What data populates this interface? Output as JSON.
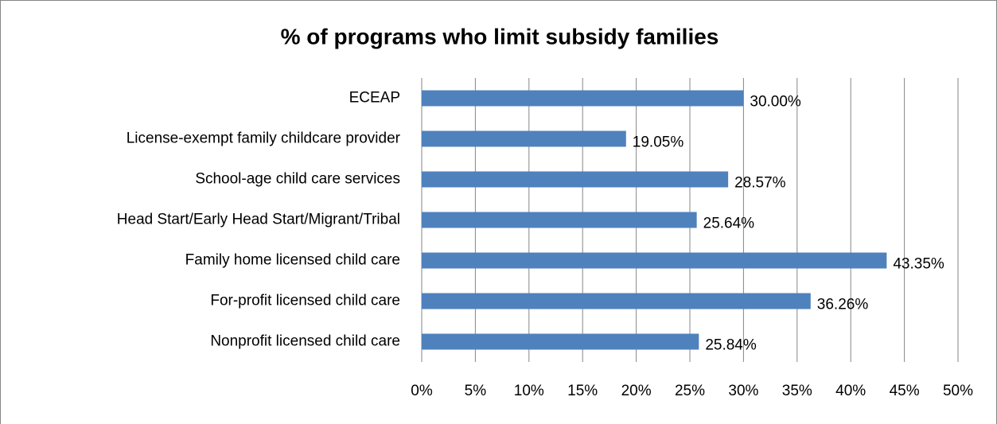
{
  "chart_data": {
    "type": "bar",
    "orientation": "horizontal",
    "title": "% of programs who limit subsidy families",
    "categories": [
      "ECEAP",
      "License-exempt family childcare provider",
      "School-age child care services",
      "Head Start/Early Head Start/Migrant/Tribal",
      "Family home licensed child care",
      "For-profit licensed child care",
      "Nonprofit licensed child care"
    ],
    "values": [
      30.0,
      19.05,
      28.57,
      25.64,
      43.35,
      36.26,
      25.84
    ],
    "value_labels": [
      "30.00%",
      "19.05%",
      "28.57%",
      "25.64%",
      "43.35%",
      "36.26%",
      "25.84%"
    ],
    "color": "#4f81bd",
    "xlim": [
      0,
      50
    ],
    "xticks": [
      {
        "value": 0,
        "label": "0%"
      },
      {
        "value": 5,
        "label": "5%"
      },
      {
        "value": 10,
        "label": "10%"
      },
      {
        "value": 15,
        "label": "15%"
      },
      {
        "value": 20,
        "label": "20%"
      },
      {
        "value": 25,
        "label": "25%"
      },
      {
        "value": 30,
        "label": "30%"
      },
      {
        "value": 35,
        "label": "35%"
      },
      {
        "value": 40,
        "label": "40%"
      },
      {
        "value": 45,
        "label": "45%"
      },
      {
        "value": 50,
        "label": "50%"
      }
    ],
    "grid": true
  }
}
